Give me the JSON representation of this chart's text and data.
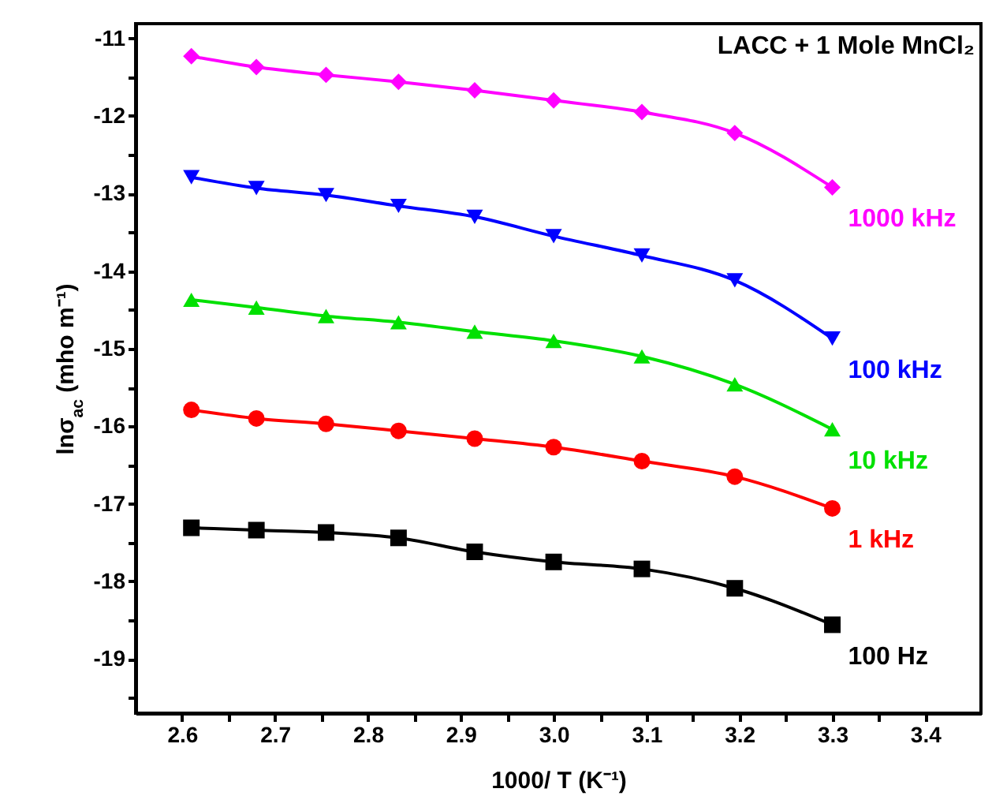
{
  "chart_data": {
    "type": "line",
    "title": "LACC + 1 Mole MnCl₂",
    "xlabel": "1000/ T (K⁻¹)",
    "ylabel": "lnσ$_{ac}$ (mho m⁻¹)",
    "x": [
      2.61,
      2.68,
      2.755,
      2.833,
      2.915,
      3.0,
      3.095,
      3.195,
      3.3
    ],
    "series": [
      {
        "name": "1000 kHz",
        "color": "#ff00ff",
        "marker": "diamond",
        "values": [
          -11.23,
          -11.37,
          -11.47,
          -11.56,
          -11.67,
          -11.8,
          -11.95,
          -12.22,
          -12.92
        ]
      },
      {
        "name": "100 kHz",
        "color": "#0000ff",
        "marker": "triangle-down",
        "values": [
          -12.79,
          -12.93,
          -13.02,
          -13.16,
          -13.3,
          -13.55,
          -13.8,
          -14.12,
          -14.87
        ]
      },
      {
        "name": "10 kHz",
        "color": "#00e000",
        "marker": "triangle",
        "values": [
          -14.37,
          -14.47,
          -14.58,
          -14.66,
          -14.78,
          -14.9,
          -15.1,
          -15.46,
          -16.04
        ]
      },
      {
        "name": "1 kHz",
        "color": "#ff0000",
        "marker": "circle",
        "values": [
          -15.79,
          -15.9,
          -15.97,
          -16.06,
          -16.16,
          -16.27,
          -16.45,
          -16.65,
          -17.06
        ]
      },
      {
        "name": "100 Hz",
        "color": "#000000",
        "marker": "square",
        "values": [
          -17.31,
          -17.34,
          -17.37,
          -17.44,
          -17.62,
          -17.75,
          -17.84,
          -18.09,
          -18.56
        ]
      }
    ],
    "xlim": [
      2.55,
      3.46
    ],
    "ylim": [
      -19.7,
      -10.81
    ],
    "xticks": [
      2.6,
      {
        "value": 2.65,
        "label": null
      },
      2.7,
      {
        "value": 2.75,
        "label": null
      },
      2.8,
      {
        "value": 2.85,
        "label": null
      },
      2.9,
      {
        "value": 2.95,
        "label": null
      },
      {
        "value": 3.0,
        "label": "3.0"
      },
      {
        "value": 3.05,
        "label": null
      },
      3.1,
      {
        "value": 3.15,
        "label": null
      },
      3.2,
      {
        "value": 3.25,
        "label": null
      },
      3.3,
      {
        "value": 3.35,
        "label": null
      },
      3.4
    ],
    "yticks": [
      {
        "value": -19.5,
        "label": null
      },
      -19,
      {
        "value": -18.5,
        "label": null
      },
      -18,
      {
        "value": -17.5,
        "label": null
      },
      -17,
      {
        "value": -16.5,
        "label": null
      },
      -16,
      {
        "value": -15.5,
        "label": null
      },
      -15,
      {
        "value": -14.5,
        "label": null
      },
      -14,
      {
        "value": -13.5,
        "label": null
      },
      -13,
      {
        "value": -12.5,
        "label": null
      },
      -12,
      {
        "value": -11.5,
        "label": null
      },
      -11
    ],
    "grid": false,
    "legend": false,
    "line_style": "solid"
  }
}
